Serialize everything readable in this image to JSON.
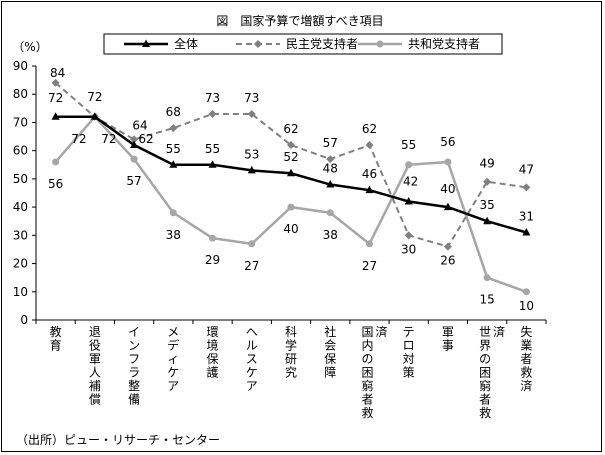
{
  "chart_data": {
    "type": "line",
    "title": "図　国家予算で増額すべき項目",
    "ylabel": "（%）",
    "xlabel": "",
    "ylim": [
      0,
      90
    ],
    "yticks": [
      0,
      10,
      20,
      30,
      40,
      50,
      60,
      70,
      80,
      90
    ],
    "grid": false,
    "legend_position": "top",
    "categories": [
      "教育",
      "退役軍人補償",
      "インフラ整備",
      "メディケア",
      "環境保護",
      "ヘルスケア",
      "科学研究",
      "社会保障",
      "国内の困窮者救済",
      "テロ対策",
      "軍事",
      "世界の困窮者救済",
      "失業者救済"
    ],
    "series": [
      {
        "name": "全体",
        "values": [
          72,
          72,
          62,
          55,
          55,
          53,
          52,
          48,
          46,
          42,
          40,
          35,
          31
        ],
        "color": "#000000",
        "style": "solid",
        "marker": "triangle"
      },
      {
        "name": "民主党支持者",
        "values": [
          84,
          72,
          64,
          68,
          73,
          73,
          62,
          57,
          62,
          30,
          26,
          49,
          47
        ],
        "color": "#808080",
        "style": "dashed",
        "marker": "diamond"
      },
      {
        "name": "共和党支持者",
        "values": [
          56,
          72,
          57,
          38,
          29,
          27,
          40,
          38,
          27,
          55,
          56,
          15,
          10
        ],
        "color": "#a6a6a6",
        "style": "solid",
        "marker": "circle"
      }
    ],
    "source": "（出所）ピュー・リサーチ・センター"
  }
}
